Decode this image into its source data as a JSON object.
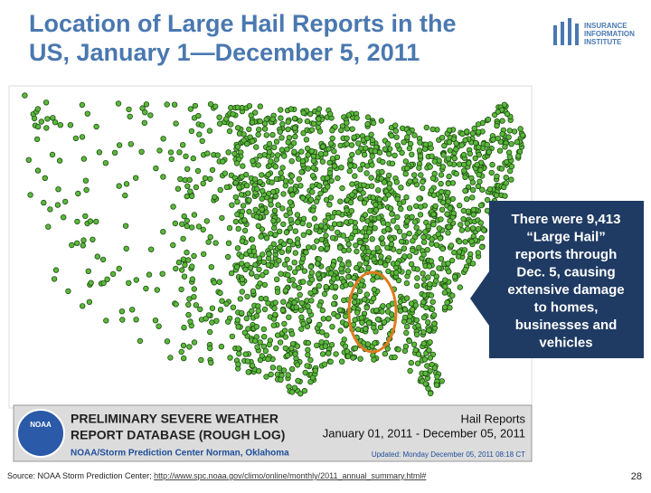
{
  "header": {
    "title_lines": [
      "Location of Large Hail Reports in the",
      "US, January 1—December 5, 2011"
    ],
    "logo": [
      "INSURANCE",
      "INFORMATION",
      "INSTITUTE"
    ]
  },
  "callout": {
    "lines": [
      "There were 9,413",
      "“Large Hail”",
      "reports through",
      "Dec. 5, causing",
      "extensive damage",
      "to homes,",
      "businesses and",
      "vehicles"
    ]
  },
  "banner": {
    "noaa": "NOAA",
    "title_line1": "PRELIMINARY SEVERE WEATHER",
    "title_line2": "REPORT DATABASE (ROUGH LOG)",
    "org": "NOAA/Storm Prediction Center",
    "location": "Norman, Oklahoma",
    "report_type": "Hail Reports",
    "date_range": "January 01, 2011 - December 05, 2011",
    "updated": "Updated:  Monday December 05, 2011 08:18 CT"
  },
  "footer": {
    "source": "Source: NOAA Storm Prediction Center; ",
    "url": "http://www.spc.noaa.gov/climo/online/monthly/2011_annual_summary.html#",
    "page": "28"
  }
}
